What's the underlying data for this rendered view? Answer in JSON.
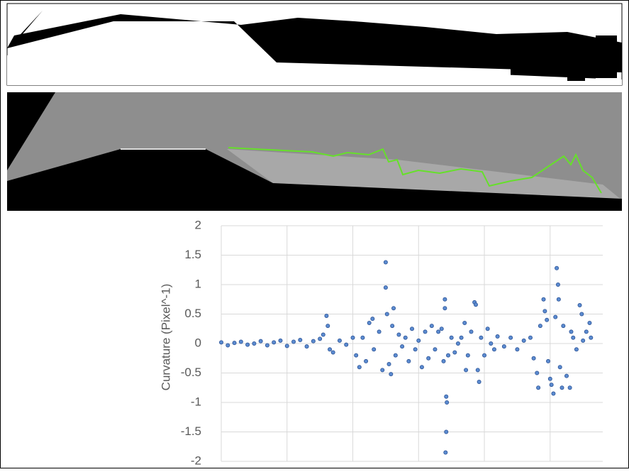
{
  "chart_data": {
    "type": "scatter",
    "y_label": "Curvature (Pixel^-1)",
    "xlim": [
      0,
      5.8
    ],
    "x_grid_lines": [
      1,
      2,
      3,
      4,
      5
    ],
    "ylim": [
      -2,
      2
    ],
    "yticks": [
      2,
      1.5,
      1,
      0.5,
      0,
      -0.5,
      -1,
      -1.5,
      -2
    ],
    "grid": true,
    "series": [
      {
        "color": "#5b8bd0",
        "x": [
          0.0,
          0.1,
          0.2,
          0.3,
          0.4,
          0.5,
          0.6,
          0.7,
          0.8,
          0.9,
          1.0,
          1.1,
          1.2,
          1.3,
          1.4,
          1.5,
          1.55,
          1.6,
          1.62,
          1.65,
          1.7,
          1.8,
          1.9,
          2.0,
          2.05,
          2.1,
          2.15,
          2.2,
          2.25,
          2.3,
          2.32,
          2.4,
          2.45,
          2.5,
          2.5,
          2.52,
          2.55,
          2.58,
          2.6,
          2.62,
          2.65,
          2.7,
          2.75,
          2.8,
          2.85,
          2.9,
          2.95,
          3.0,
          3.05,
          3.1,
          3.15,
          3.2,
          3.25,
          3.3,
          3.35,
          3.38,
          3.4,
          3.4,
          3.42,
          3.43,
          3.42,
          3.41,
          3.45,
          3.5,
          3.55,
          3.6,
          3.65,
          3.7,
          3.72,
          3.75,
          3.8,
          3.85,
          3.87,
          3.9,
          3.92,
          3.95,
          4.0,
          4.05,
          4.1,
          4.15,
          4.2,
          4.3,
          4.4,
          4.5,
          4.6,
          4.7,
          4.75,
          4.8,
          4.82,
          4.85,
          4.9,
          4.92,
          4.95,
          4.97,
          5.0,
          5.02,
          5.05,
          5.08,
          5.1,
          5.12,
          5.13,
          5.15,
          5.18,
          5.2,
          5.25,
          5.3,
          5.32,
          5.35,
          5.4,
          5.45,
          5.48,
          5.5,
          5.55,
          5.6,
          5.62
        ],
        "values": [
          0.02,
          -0.03,
          0.01,
          0.03,
          -0.02,
          0.0,
          0.04,
          -0.03,
          0.02,
          0.05,
          -0.04,
          0.03,
          0.06,
          -0.05,
          0.04,
          0.08,
          0.15,
          0.47,
          0.3,
          -0.1,
          -0.15,
          0.05,
          -0.02,
          0.1,
          -0.2,
          -0.4,
          0.1,
          -0.3,
          0.35,
          0.42,
          -0.1,
          0.2,
          -0.45,
          1.38,
          0.95,
          0.5,
          -0.35,
          -0.52,
          0.3,
          0.6,
          -0.2,
          0.15,
          -0.05,
          0.1,
          -0.3,
          0.25,
          -0.1,
          0.05,
          -0.4,
          0.2,
          -0.25,
          0.3,
          -0.1,
          0.2,
          0.25,
          -0.3,
          0.75,
          0.6,
          -0.9,
          -1.0,
          -1.5,
          -1.85,
          -0.2,
          0.1,
          -0.15,
          0.0,
          0.1,
          0.35,
          -0.45,
          -0.2,
          0.2,
          0.7,
          0.66,
          -0.45,
          -0.65,
          0.1,
          -0.2,
          0.25,
          0.0,
          -0.1,
          0.12,
          -0.05,
          0.1,
          -0.1,
          0.05,
          0.1,
          -0.25,
          -0.5,
          -0.75,
          0.3,
          0.75,
          0.55,
          0.4,
          -0.3,
          -0.6,
          -0.7,
          -0.85,
          0.45,
          1.28,
          1.0,
          0.75,
          -0.4,
          -0.75,
          0.3,
          -0.55,
          -0.75,
          0.2,
          0.1,
          -0.1,
          0.65,
          0.5,
          0.05,
          0.2,
          0.35,
          0.1
        ]
      }
    ]
  }
}
